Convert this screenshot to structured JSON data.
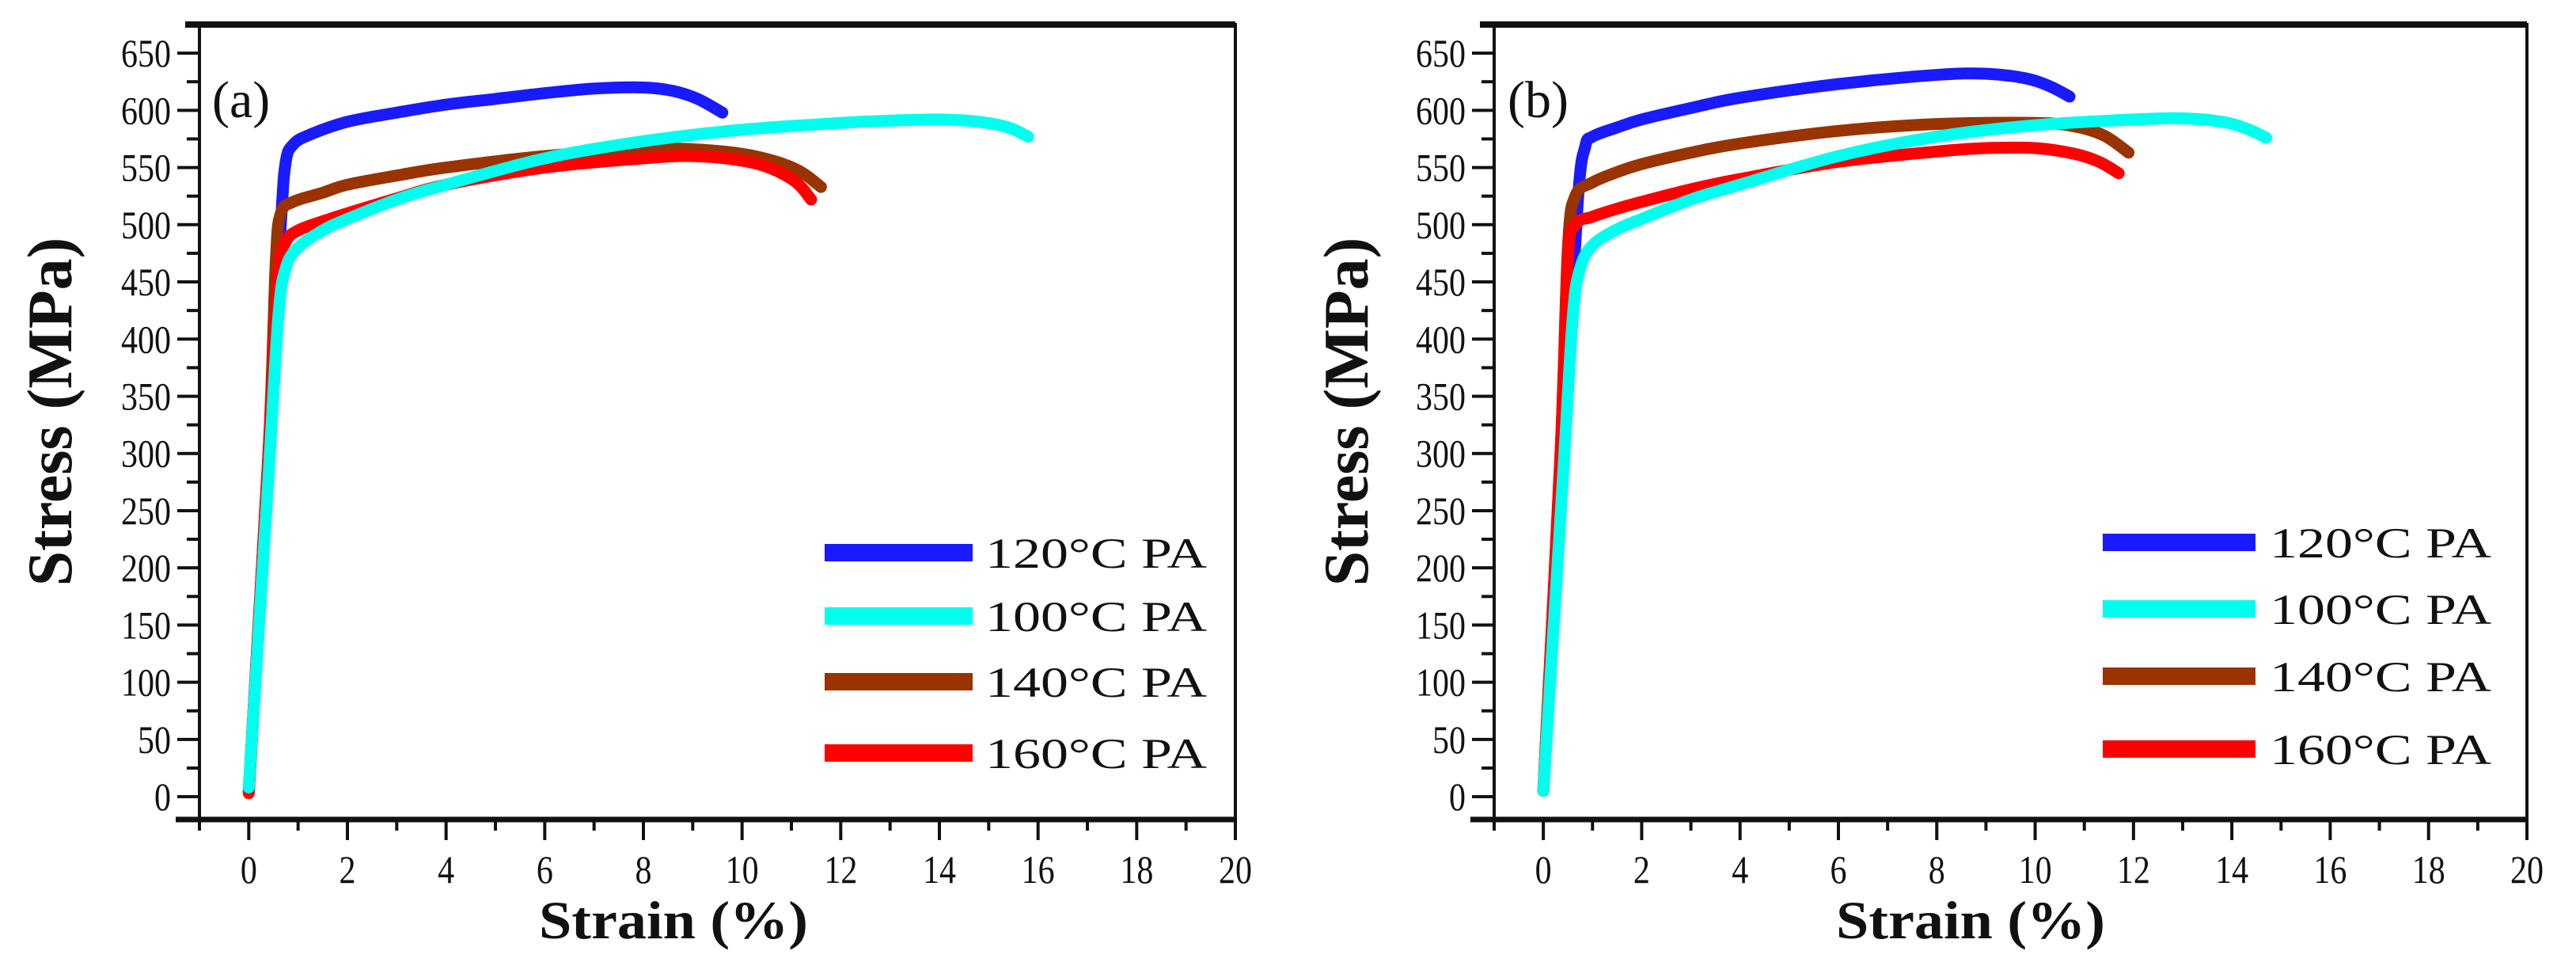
{
  "chart_data": [
    {
      "type": "line",
      "panel_label": "(a)",
      "xlabel": "Strain (%)",
      "ylabel": "Stress (MPa)",
      "xlim": [
        -1,
        20
      ],
      "ylim": [
        -20,
        675
      ],
      "x_ticks": [
        0,
        2,
        4,
        6,
        8,
        10,
        12,
        14,
        16,
        18,
        20
      ],
      "y_ticks": [
        0,
        50,
        100,
        150,
        200,
        250,
        300,
        350,
        400,
        450,
        500,
        550,
        600,
        650
      ],
      "legend_position": "bottom-right",
      "series": [
        {
          "name": "120°C PA",
          "color": "#1a1aff",
          "x": [
            0,
            0.4,
            0.65,
            0.75,
            0.9,
            1.2,
            2,
            3,
            4,
            5,
            6,
            7,
            8,
            8.6,
            9.1,
            9.6
          ],
          "y": [
            5,
            300,
            500,
            555,
            570,
            578,
            590,
            598,
            605,
            610,
            615,
            619,
            620,
            617,
            610,
            598
          ]
        },
        {
          "name": "100°C PA",
          "color": "#00ffee",
          "x": [
            0,
            0.4,
            0.6,
            0.75,
            1,
            1.5,
            2,
            3,
            4,
            6,
            8,
            10,
            12,
            13,
            14,
            14.8,
            15.4,
            15.8
          ],
          "y": [
            8,
            280,
            420,
            462,
            480,
            495,
            505,
            522,
            535,
            558,
            573,
            583,
            589,
            591,
            592,
            590,
            585,
            577
          ]
        },
        {
          "name": "140°C PA",
          "color": "#993300",
          "x": [
            0,
            0.4,
            0.55,
            0.65,
            0.9,
            1.5,
            2,
            3,
            4,
            6,
            8,
            9,
            10,
            10.7,
            11.2,
            11.6
          ],
          "y": [
            5,
            300,
            470,
            510,
            520,
            528,
            535,
            543,
            550,
            560,
            566,
            566,
            562,
            555,
            546,
            533
          ]
        },
        {
          "name": "160°C PA",
          "color": "#ff0000",
          "x": [
            0,
            0.4,
            0.6,
            0.75,
            1,
            1.5,
            2,
            3,
            4,
            6,
            8,
            9,
            10,
            10.6,
            11.1,
            11.4
          ],
          "y": [
            3,
            300,
            455,
            485,
            495,
            503,
            510,
            523,
            535,
            550,
            558,
            560,
            556,
            549,
            537,
            522
          ]
        }
      ]
    },
    {
      "type": "line",
      "panel_label": "(b)",
      "xlabel": "Strain (%)",
      "ylabel": "Stress (MPa)",
      "xlim": [
        -1,
        20
      ],
      "ylim": [
        -20,
        675
      ],
      "x_ticks": [
        0,
        2,
        4,
        6,
        8,
        10,
        12,
        14,
        16,
        18,
        20
      ],
      "y_ticks": [
        0,
        50,
        100,
        150,
        200,
        250,
        300,
        350,
        400,
        450,
        500,
        550,
        600,
        650
      ],
      "legend_position": "bottom-right",
      "series": [
        {
          "name": "120°C PA",
          "color": "#1a1aff",
          "x": [
            0,
            0.4,
            0.7,
            0.85,
            1,
            1.5,
            2,
            3,
            4,
            6,
            8,
            9,
            9.8,
            10.3,
            10.7
          ],
          "y": [
            5,
            300,
            520,
            568,
            577,
            585,
            592,
            602,
            611,
            623,
            631,
            632,
            628,
            621,
            612
          ]
        },
        {
          "name": "100°C PA",
          "color": "#00ffee",
          "x": [
            0,
            0.4,
            0.6,
            0.75,
            1,
            1.5,
            2,
            3,
            4,
            6,
            8,
            10,
            12,
            13,
            13.8,
            14.3,
            14.7
          ],
          "y": [
            5,
            280,
            420,
            462,
            482,
            496,
            505,
            522,
            535,
            560,
            577,
            587,
            592,
            593,
            590,
            584,
            576
          ]
        },
        {
          "name": "140°C PA",
          "color": "#993300",
          "x": [
            0,
            0.35,
            0.5,
            0.65,
            1,
            1.5,
            2,
            3,
            4,
            6,
            8,
            10,
            10.8,
            11.4,
            11.9
          ],
          "y": [
            5,
            300,
            480,
            525,
            537,
            546,
            553,
            563,
            571,
            582,
            588,
            589,
            586,
            578,
            563
          ]
        },
        {
          "name": "160°C PA",
          "color": "#ff0000",
          "x": [
            0,
            0.35,
            0.5,
            0.65,
            1,
            1.5,
            2,
            3,
            4,
            6,
            8,
            9,
            10,
            10.8,
            11.3,
            11.7
          ],
          "y": [
            5,
            300,
            470,
            500,
            507,
            514,
            520,
            531,
            540,
            555,
            564,
            567,
            567,
            562,
            555,
            545
          ]
        }
      ]
    }
  ]
}
